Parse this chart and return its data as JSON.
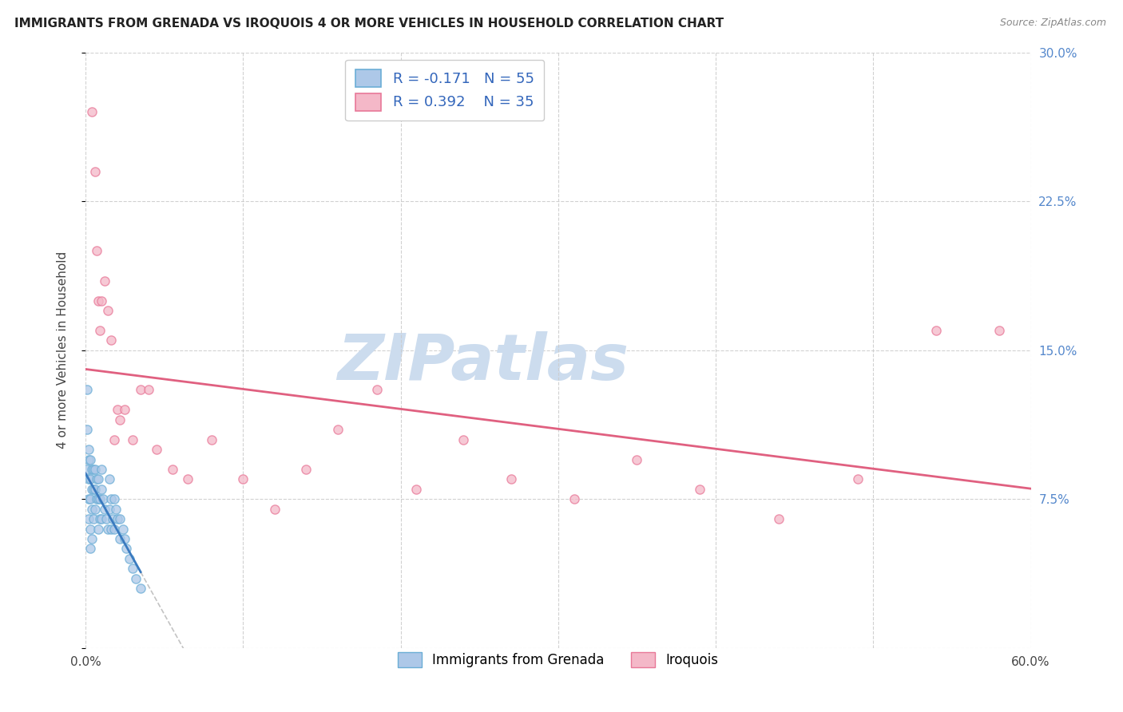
{
  "title": "IMMIGRANTS FROM GRENADA VS IROQUOIS 4 OR MORE VEHICLES IN HOUSEHOLD CORRELATION CHART",
  "source": "Source: ZipAtlas.com",
  "ylabel": "4 or more Vehicles in Household",
  "xlim": [
    0,
    0.6
  ],
  "ylim": [
    0,
    0.3
  ],
  "yticks": [
    0.0,
    0.075,
    0.15,
    0.225,
    0.3
  ],
  "ytick_labels_left": [
    "",
    "",
    "",
    "",
    ""
  ],
  "ytick_labels_right": [
    "",
    "7.5%",
    "15.0%",
    "22.5%",
    "30.0%"
  ],
  "xticks": [
    0.0,
    0.1,
    0.2,
    0.3,
    0.4,
    0.5,
    0.6
  ],
  "xtick_labels": [
    "0.0%",
    "",
    "",
    "",
    "",
    "",
    "60.0%"
  ],
  "legend1_label": "R = -0.171   N = 55",
  "legend2_label": "R = 0.392   N = 35",
  "legend_label1": "Immigrants from Grenada",
  "legend_label2": "Iroquois",
  "R_grenada": -0.171,
  "N_grenada": 55,
  "R_iroquois": 0.392,
  "N_iroquois": 35,
  "color_grenada_fill": "#adc8e8",
  "color_grenada_edge": "#6baed6",
  "color_iroquois_fill": "#f4b8c8",
  "color_iroquois_edge": "#e87898",
  "color_line_grenada": "#3a7abf",
  "color_line_iroquois": "#e06080",
  "color_line_grenada_dash": "#b0c8e0",
  "watermark_text": "ZIPatlas",
  "watermark_color": "#ccdcee",
  "background_color": "#ffffff",
  "grenada_x": [
    0.001,
    0.001,
    0.001,
    0.002,
    0.002,
    0.002,
    0.002,
    0.002,
    0.003,
    0.003,
    0.003,
    0.003,
    0.003,
    0.004,
    0.004,
    0.004,
    0.004,
    0.005,
    0.005,
    0.005,
    0.006,
    0.006,
    0.006,
    0.007,
    0.007,
    0.008,
    0.008,
    0.008,
    0.009,
    0.009,
    0.01,
    0.01,
    0.01,
    0.011,
    0.012,
    0.013,
    0.014,
    0.015,
    0.015,
    0.016,
    0.016,
    0.017,
    0.018,
    0.018,
    0.019,
    0.02,
    0.022,
    0.022,
    0.024,
    0.025,
    0.026,
    0.028,
    0.03,
    0.032,
    0.035
  ],
  "grenada_y": [
    0.13,
    0.11,
    0.09,
    0.1,
    0.095,
    0.085,
    0.075,
    0.065,
    0.095,
    0.085,
    0.075,
    0.06,
    0.05,
    0.09,
    0.08,
    0.07,
    0.055,
    0.09,
    0.08,
    0.065,
    0.09,
    0.08,
    0.07,
    0.085,
    0.075,
    0.085,
    0.075,
    0.06,
    0.075,
    0.065,
    0.09,
    0.08,
    0.065,
    0.075,
    0.07,
    0.065,
    0.06,
    0.085,
    0.07,
    0.075,
    0.06,
    0.065,
    0.075,
    0.06,
    0.07,
    0.065,
    0.065,
    0.055,
    0.06,
    0.055,
    0.05,
    0.045,
    0.04,
    0.035,
    0.03
  ],
  "iroquois_x": [
    0.004,
    0.006,
    0.007,
    0.008,
    0.009,
    0.01,
    0.012,
    0.014,
    0.016,
    0.018,
    0.02,
    0.022,
    0.025,
    0.03,
    0.035,
    0.04,
    0.045,
    0.055,
    0.065,
    0.08,
    0.1,
    0.12,
    0.14,
    0.16,
    0.185,
    0.21,
    0.24,
    0.27,
    0.31,
    0.35,
    0.39,
    0.44,
    0.49,
    0.54,
    0.58
  ],
  "iroquois_y": [
    0.27,
    0.24,
    0.2,
    0.175,
    0.16,
    0.175,
    0.185,
    0.17,
    0.155,
    0.105,
    0.12,
    0.115,
    0.12,
    0.105,
    0.13,
    0.13,
    0.1,
    0.09,
    0.085,
    0.105,
    0.085,
    0.07,
    0.09,
    0.11,
    0.13,
    0.08,
    0.105,
    0.085,
    0.075,
    0.095,
    0.08,
    0.065,
    0.085,
    0.16,
    0.16
  ]
}
